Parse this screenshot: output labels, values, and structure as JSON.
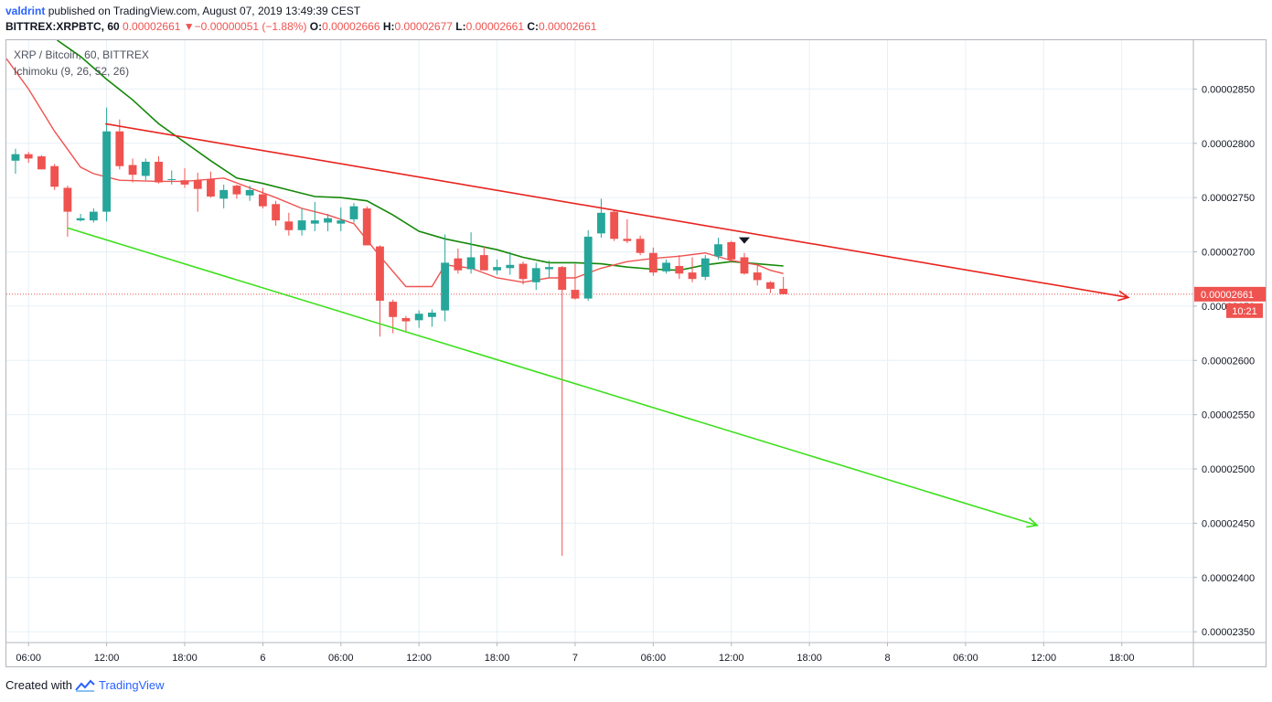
{
  "header": {
    "author": "valdrint",
    "published_text": "published on TradingView.com, August 07, 2019 13:49:39 CEST",
    "symbol": "BITTREX:XRPBTC, 60",
    "last_price": "0.00002661",
    "change_arrow": "▼",
    "change": "−0.00000051 (−1.88%)",
    "o_label": "O:",
    "o_value": "0.00002666",
    "h_label": "H:",
    "h_value": "0.00002677",
    "l_label": "L:",
    "l_value": "0.00002661",
    "c_label": "C:",
    "c_value": "0.00002661"
  },
  "legend": {
    "pair": "XRP / Bitcoin, 60, BITTREX",
    "indicator": "Ichimoku (9, 26, 52, 26)"
  },
  "footer": {
    "created_with": "Created with",
    "brand": "TradingView"
  },
  "colors": {
    "up": "#26a69a",
    "down": "#ef5350",
    "conversion_line": "#ef5350",
    "base_line": "#138808",
    "resistance_line": "#e8231e",
    "support_line": "#3ee01e",
    "grid": "#e6f0f6",
    "axis_text": "#131722",
    "price_tag": "#ef5350"
  },
  "chart_data": {
    "type": "candlestick",
    "y_ticks": [
      "0.00002850",
      "0.00002800",
      "0.00002750",
      "0.00002700",
      "0.00002650",
      "0.00002600",
      "0.00002550",
      "0.00002500",
      "0.00002450",
      "0.00002400",
      "0.00002350"
    ],
    "y_tick_values": [
      2850,
      2800,
      2750,
      2700,
      2650,
      2600,
      2550,
      2500,
      2450,
      2400,
      2350
    ],
    "y_unit_note": "values in 1e-8 BTC",
    "ylim": [
      2340,
      2895
    ],
    "x_tick_labels": [
      "06:00",
      "12:00",
      "18:00",
      "6",
      "06:00",
      "12:00",
      "18:00",
      "7",
      "06:00",
      "12:00",
      "18:00",
      "8",
      "06:00",
      "12:00",
      "18:00"
    ],
    "x_tick_hours": [
      6,
      12,
      18,
      24,
      30,
      36,
      42,
      48,
      54,
      60,
      66,
      72,
      78,
      84,
      90
    ],
    "xlim_hours": [
      4.3,
      95.5
    ],
    "current_price": "0.00002661",
    "current_price_value": 2661,
    "countdown": "10:21",
    "candles": [
      {
        "t": 5,
        "o": 2784,
        "h": 2795,
        "l": 2772,
        "c": 2790
      },
      {
        "t": 6,
        "o": 2790,
        "h": 2792,
        "l": 2782,
        "c": 2786
      },
      {
        "t": 7,
        "o": 2788,
        "h": 2789,
        "l": 2776,
        "c": 2776
      },
      {
        "t": 8,
        "o": 2779,
        "h": 2781,
        "l": 2757,
        "c": 2760
      },
      {
        "t": 9,
        "o": 2759,
        "h": 2761,
        "l": 2714,
        "c": 2737
      },
      {
        "t": 10,
        "o": 2729,
        "h": 2735,
        "l": 2728,
        "c": 2731
      },
      {
        "t": 11,
        "o": 2729,
        "h": 2740,
        "l": 2727,
        "c": 2737
      },
      {
        "t": 12,
        "o": 2737,
        "h": 2833,
        "l": 2728,
        "c": 2811
      },
      {
        "t": 13,
        "o": 2811,
        "h": 2822,
        "l": 2776,
        "c": 2779
      },
      {
        "t": 14,
        "o": 2780,
        "h": 2786,
        "l": 2764,
        "c": 2771
      },
      {
        "t": 15,
        "o": 2770,
        "h": 2786,
        "l": 2766,
        "c": 2783
      },
      {
        "t": 16,
        "o": 2783,
        "h": 2788,
        "l": 2763,
        "c": 2764
      },
      {
        "t": 17,
        "o": 2767,
        "h": 2775,
        "l": 2762,
        "c": 2767
      },
      {
        "t": 18,
        "o": 2766,
        "h": 2777,
        "l": 2759,
        "c": 2762
      },
      {
        "t": 19,
        "o": 2766,
        "h": 2773,
        "l": 2737,
        "c": 2758
      },
      {
        "t": 20,
        "o": 2767,
        "h": 2774,
        "l": 2750,
        "c": 2751
      },
      {
        "t": 21,
        "o": 2749,
        "h": 2762,
        "l": 2740,
        "c": 2757
      },
      {
        "t": 22,
        "o": 2761,
        "h": 2762,
        "l": 2749,
        "c": 2753
      },
      {
        "t": 23,
        "o": 2752,
        "h": 2761,
        "l": 2747,
        "c": 2757
      },
      {
        "t": 24,
        "o": 2753,
        "h": 2759,
        "l": 2740,
        "c": 2742
      },
      {
        "t": 25,
        "o": 2744,
        "h": 2747,
        "l": 2724,
        "c": 2729
      },
      {
        "t": 26,
        "o": 2728,
        "h": 2736,
        "l": 2715,
        "c": 2720
      },
      {
        "t": 27,
        "o": 2720,
        "h": 2740,
        "l": 2715,
        "c": 2729
      },
      {
        "t": 28,
        "o": 2726,
        "h": 2746,
        "l": 2719,
        "c": 2729
      },
      {
        "t": 29,
        "o": 2727,
        "h": 2735,
        "l": 2719,
        "c": 2731
      },
      {
        "t": 30,
        "o": 2726,
        "h": 2741,
        "l": 2719,
        "c": 2729
      },
      {
        "t": 31,
        "o": 2730,
        "h": 2745,
        "l": 2727,
        "c": 2742
      },
      {
        "t": 32,
        "o": 2740,
        "h": 2742,
        "l": 2706,
        "c": 2706
      },
      {
        "t": 33,
        "o": 2705,
        "h": 2706,
        "l": 2622,
        "c": 2655
      },
      {
        "t": 34,
        "o": 2654,
        "h": 2656,
        "l": 2625,
        "c": 2640
      },
      {
        "t": 35,
        "o": 2639,
        "h": 2641,
        "l": 2627,
        "c": 2636
      },
      {
        "t": 36,
        "o": 2637,
        "h": 2646,
        "l": 2630,
        "c": 2643
      },
      {
        "t": 37,
        "o": 2640,
        "h": 2647,
        "l": 2631,
        "c": 2644
      },
      {
        "t": 38,
        "o": 2646,
        "h": 2716,
        "l": 2636,
        "c": 2690
      },
      {
        "t": 39,
        "o": 2694,
        "h": 2703,
        "l": 2680,
        "c": 2683
      },
      {
        "t": 40,
        "o": 2684,
        "h": 2718,
        "l": 2680,
        "c": 2695
      },
      {
        "t": 41,
        "o": 2697,
        "h": 2705,
        "l": 2683,
        "c": 2683
      },
      {
        "t": 42,
        "o": 2683,
        "h": 2693,
        "l": 2679,
        "c": 2686
      },
      {
        "t": 43,
        "o": 2685,
        "h": 2700,
        "l": 2679,
        "c": 2688
      },
      {
        "t": 44,
        "o": 2689,
        "h": 2691,
        "l": 2670,
        "c": 2675
      },
      {
        "t": 45,
        "o": 2672,
        "h": 2690,
        "l": 2665,
        "c": 2685
      },
      {
        "t": 46,
        "o": 2684,
        "h": 2692,
        "l": 2676,
        "c": 2686
      },
      {
        "t": 47,
        "o": 2686,
        "h": 2687,
        "l": 2420,
        "c": 2665
      },
      {
        "t": 48,
        "o": 2665,
        "h": 2689,
        "l": 2656,
        "c": 2657
      },
      {
        "t": 49,
        "o": 2657,
        "h": 2720,
        "l": 2655,
        "c": 2714
      },
      {
        "t": 50,
        "o": 2717,
        "h": 2749,
        "l": 2713,
        "c": 2736
      },
      {
        "t": 51,
        "o": 2737,
        "h": 2738,
        "l": 2710,
        "c": 2712
      },
      {
        "t": 52,
        "o": 2712,
        "h": 2730,
        "l": 2708,
        "c": 2710
      },
      {
        "t": 53,
        "o": 2712,
        "h": 2715,
        "l": 2697,
        "c": 2699
      },
      {
        "t": 54,
        "o": 2699,
        "h": 2704,
        "l": 2678,
        "c": 2681
      },
      {
        "t": 55,
        "o": 2682,
        "h": 2693,
        "l": 2680,
        "c": 2690
      },
      {
        "t": 56,
        "o": 2687,
        "h": 2697,
        "l": 2675,
        "c": 2680
      },
      {
        "t": 57,
        "o": 2681,
        "h": 2695,
        "l": 2672,
        "c": 2675
      },
      {
        "t": 58,
        "o": 2677,
        "h": 2697,
        "l": 2674,
        "c": 2694
      },
      {
        "t": 59,
        "o": 2696,
        "h": 2713,
        "l": 2693,
        "c": 2707
      },
      {
        "t": 60,
        "o": 2709,
        "h": 2710,
        "l": 2690,
        "c": 2693
      },
      {
        "t": 61,
        "o": 2695,
        "h": 2699,
        "l": 2679,
        "c": 2680
      },
      {
        "t": 62,
        "o": 2681,
        "h": 2690,
        "l": 2669,
        "c": 2674
      },
      {
        "t": 63,
        "o": 2672,
        "h": 2673,
        "l": 2662,
        "c": 2666
      },
      {
        "t": 64,
        "o": 2666,
        "h": 2677,
        "l": 2661,
        "c": 2661
      }
    ],
    "conversion_line": [
      {
        "t": 4.3,
        "v": 2878
      },
      {
        "t": 6,
        "v": 2850
      },
      {
        "t": 8,
        "v": 2811
      },
      {
        "t": 10,
        "v": 2778
      },
      {
        "t": 11,
        "v": 2772
      },
      {
        "t": 13,
        "v": 2766
      },
      {
        "t": 16,
        "v": 2765
      },
      {
        "t": 18,
        "v": 2765
      },
      {
        "t": 21,
        "v": 2768
      },
      {
        "t": 23,
        "v": 2759
      },
      {
        "t": 25,
        "v": 2750
      },
      {
        "t": 27,
        "v": 2740
      },
      {
        "t": 29,
        "v": 2734
      },
      {
        "t": 31,
        "v": 2726
      },
      {
        "t": 33,
        "v": 2696
      },
      {
        "t": 35,
        "v": 2668
      },
      {
        "t": 37,
        "v": 2668
      },
      {
        "t": 38,
        "v": 2688
      },
      {
        "t": 40,
        "v": 2685
      },
      {
        "t": 42,
        "v": 2676
      },
      {
        "t": 44,
        "v": 2672
      },
      {
        "t": 46,
        "v": 2676
      },
      {
        "t": 48,
        "v": 2676
      },
      {
        "t": 50,
        "v": 2685
      },
      {
        "t": 52,
        "v": 2691
      },
      {
        "t": 54,
        "v": 2694
      },
      {
        "t": 56,
        "v": 2696
      },
      {
        "t": 58,
        "v": 2699
      },
      {
        "t": 60,
        "v": 2692
      },
      {
        "t": 62,
        "v": 2688
      },
      {
        "t": 63,
        "v": 2683
      },
      {
        "t": 64,
        "v": 2680
      }
    ],
    "base_line": [
      {
        "t": 8.2,
        "v": 2895
      },
      {
        "t": 10,
        "v": 2880
      },
      {
        "t": 12,
        "v": 2859
      },
      {
        "t": 14,
        "v": 2840
      },
      {
        "t": 16,
        "v": 2818
      },
      {
        "t": 18,
        "v": 2801
      },
      {
        "t": 20,
        "v": 2784
      },
      {
        "t": 22,
        "v": 2768
      },
      {
        "t": 24,
        "v": 2763
      },
      {
        "t": 26,
        "v": 2757
      },
      {
        "t": 28,
        "v": 2751
      },
      {
        "t": 30,
        "v": 2750
      },
      {
        "t": 32,
        "v": 2747
      },
      {
        "t": 34,
        "v": 2734
      },
      {
        "t": 36,
        "v": 2719
      },
      {
        "t": 38,
        "v": 2712
      },
      {
        "t": 40,
        "v": 2707
      },
      {
        "t": 42,
        "v": 2702
      },
      {
        "t": 44,
        "v": 2695
      },
      {
        "t": 46,
        "v": 2690
      },
      {
        "t": 48,
        "v": 2690
      },
      {
        "t": 50,
        "v": 2689
      },
      {
        "t": 52,
        "v": 2686
      },
      {
        "t": 54,
        "v": 2684
      },
      {
        "t": 56,
        "v": 2683
      },
      {
        "t": 58,
        "v": 2688
      },
      {
        "t": 60,
        "v": 2691
      },
      {
        "t": 62,
        "v": 2689
      },
      {
        "t": 64,
        "v": 2687
      }
    ],
    "resistance_trendline": {
      "t1": 11.9,
      "v1": 2818,
      "t2": 90.5,
      "v2": 2658
    },
    "support_trendline": {
      "t1": 9.0,
      "v1": 2722,
      "t2": 83.5,
      "v2": 2448
    },
    "signal_marker": {
      "t": 61,
      "v": 2710
    }
  }
}
